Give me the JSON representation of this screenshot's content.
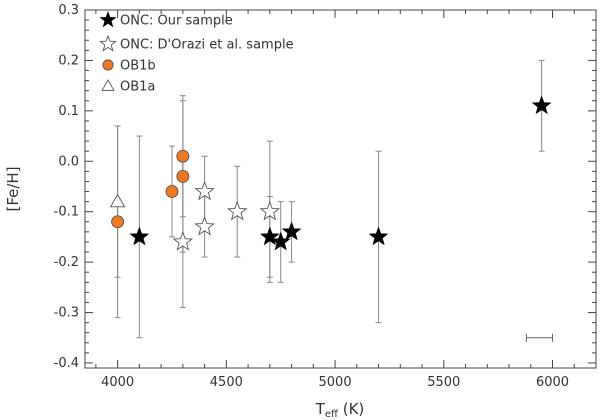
{
  "chart_data": {
    "type": "scatter",
    "xlabel": "T",
    "xlabel_sub": "eff",
    "xlabel_unit": " (K)",
    "ylabel": "[Fe/H]",
    "xlim": [
      3850,
      6200
    ],
    "ylim": [
      -0.41,
      0.3
    ],
    "x_ticks": [
      4000,
      4500,
      5000,
      5500,
      6000
    ],
    "x_tick_labels": [
      "4000",
      "4500",
      "5000",
      "5500",
      "6000"
    ],
    "y_ticks": [
      -0.4,
      -0.3,
      -0.2,
      -0.1,
      0.0,
      0.1,
      0.2,
      0.3
    ],
    "y_tick_labels": [
      "-0.4",
      "-0.3",
      "-0.2",
      "-0.1",
      "0.0",
      "0.1",
      "0.2",
      "0.3"
    ],
    "legend": {
      "placement": "top-left",
      "entries": [
        {
          "label": "ONC: Our sample",
          "marker": "star-filled"
        },
        {
          "label": "ONC: D'Orazi et al. sample",
          "marker": "star-open"
        },
        {
          "label": "OB1b",
          "marker": "circle-orange"
        },
        {
          "label": "OB1a",
          "marker": "triangle-open"
        }
      ]
    },
    "series": [
      {
        "name": "ONC: Our sample",
        "marker": "star-filled",
        "color": "#000000",
        "points": [
          {
            "x": 4100,
            "y": -0.15,
            "err": 0.2
          },
          {
            "x": 4700,
            "y": -0.15,
            "err": 0.08
          },
          {
            "x": 4750,
            "y": -0.16,
            "err": 0.08
          },
          {
            "x": 4800,
            "y": -0.14,
            "err": 0.06
          },
          {
            "x": 5200,
            "y": -0.15,
            "err": 0.17
          },
          {
            "x": 5950,
            "y": 0.11,
            "err": 0.09
          }
        ]
      },
      {
        "name": "ONC: D'Orazi et al. sample",
        "marker": "star-open",
        "color": "#555555",
        "points": [
          {
            "x": 4300,
            "y": -0.16,
            "err": 0.13
          },
          {
            "x": 4400,
            "y": -0.13,
            "err": 0.06
          },
          {
            "x": 4400,
            "y": -0.06,
            "err": 0.07
          },
          {
            "x": 4550,
            "y": -0.1,
            "err": 0.09
          },
          {
            "x": 4700,
            "y": -0.1,
            "err": 0.14
          }
        ]
      },
      {
        "name": "OB1b",
        "marker": "circle-orange",
        "color": "#f07820",
        "points": [
          {
            "x": 4000,
            "y": -0.12,
            "err": 0.19
          },
          {
            "x": 4250,
            "y": -0.06,
            "err": 0.09
          },
          {
            "x": 4300,
            "y": -0.03,
            "err": 0.15
          },
          {
            "x": 4300,
            "y": 0.01,
            "err": 0.12
          }
        ]
      },
      {
        "name": "OB1a",
        "marker": "triangle-open",
        "color": "#555555",
        "points": [
          {
            "x": 4000,
            "y": -0.08,
            "err": 0.15
          }
        ]
      }
    ],
    "scale_bar": {
      "x_start": 5880,
      "x_end": 6000,
      "y": -0.35
    }
  }
}
